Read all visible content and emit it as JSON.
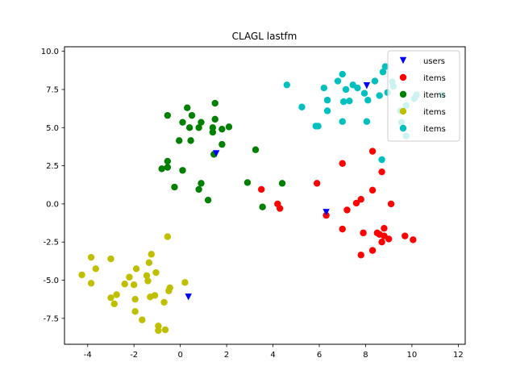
{
  "chart_data": {
    "type": "scatter",
    "title": "CLAGL lastfm",
    "xlabel": "",
    "ylabel": "",
    "xlim": [
      -5.0,
      12.3
    ],
    "ylim": [
      -9.2,
      10.3
    ],
    "xticks": [
      -4,
      -2,
      0,
      2,
      4,
      6,
      8,
      10,
      12
    ],
    "yticks": [
      -7.5,
      -5.0,
      -2.5,
      0.0,
      2.5,
      5.0,
      7.5,
      10.0
    ],
    "grid": false,
    "legend_position": "top-right",
    "series": [
      {
        "name": "users",
        "color": "#0000ff",
        "marker": "triangle-down",
        "points": [
          [
            0.35,
            -6.1
          ],
          [
            1.55,
            3.3
          ],
          [
            6.3,
            -0.55
          ],
          [
            8.05,
            7.75
          ]
        ]
      },
      {
        "name": "items",
        "color": "#ff0000",
        "marker": "circle",
        "points": [
          [
            3.5,
            0.95
          ],
          [
            4.2,
            0.0
          ],
          [
            4.3,
            -0.3
          ],
          [
            5.9,
            1.35
          ],
          [
            6.3,
            -0.75
          ],
          [
            7.0,
            2.65
          ],
          [
            7.2,
            -0.4
          ],
          [
            7.0,
            -1.65
          ],
          [
            7.6,
            0.05
          ],
          [
            7.8,
            0.3
          ],
          [
            7.9,
            -1.9
          ],
          [
            7.8,
            -3.35
          ],
          [
            8.3,
            0.9
          ],
          [
            8.3,
            3.45
          ],
          [
            8.7,
            2.1
          ],
          [
            8.5,
            -1.9
          ],
          [
            8.6,
            -2.0
          ],
          [
            8.8,
            -1.6
          ],
          [
            8.8,
            -2.1
          ],
          [
            9.0,
            -2.3
          ],
          [
            9.1,
            0.0
          ],
          [
            8.7,
            -2.5
          ],
          [
            8.3,
            -3.05
          ],
          [
            9.7,
            -2.1
          ],
          [
            10.05,
            -2.35
          ]
        ]
      },
      {
        "name": "items",
        "color": "#008000",
        "marker": "circle",
        "points": [
          [
            -0.55,
            5.8
          ],
          [
            0.1,
            5.35
          ],
          [
            0.3,
            6.3
          ],
          [
            0.5,
            5.8
          ],
          [
            0.4,
            5.0
          ],
          [
            0.8,
            5.0
          ],
          [
            0.9,
            5.35
          ],
          [
            1.4,
            5.0
          ],
          [
            1.4,
            4.7
          ],
          [
            1.5,
            5.55
          ],
          [
            1.5,
            6.6
          ],
          [
            1.8,
            4.9
          ],
          [
            2.1,
            5.05
          ],
          [
            -0.05,
            4.15
          ],
          [
            0.45,
            4.15
          ],
          [
            1.8,
            3.9
          ],
          [
            1.45,
            3.25
          ],
          [
            -0.55,
            2.8
          ],
          [
            -0.8,
            2.3
          ],
          [
            -0.55,
            2.4
          ],
          [
            0.1,
            2.2
          ],
          [
            0.9,
            1.35
          ],
          [
            0.8,
            0.95
          ],
          [
            -0.25,
            1.1
          ],
          [
            1.2,
            0.25
          ],
          [
            3.25,
            3.55
          ],
          [
            2.9,
            1.4
          ],
          [
            4.4,
            1.35
          ],
          [
            3.55,
            -0.2
          ]
        ]
      },
      {
        "name": "items",
        "color": "#bfbf00",
        "marker": "circle",
        "points": [
          [
            -4.25,
            -4.65
          ],
          [
            -3.85,
            -5.2
          ],
          [
            -3.85,
            -3.5
          ],
          [
            -3.65,
            -4.25
          ],
          [
            -3.0,
            -3.6
          ],
          [
            -3.0,
            -6.15
          ],
          [
            -2.85,
            -6.55
          ],
          [
            -2.75,
            -5.95
          ],
          [
            -2.4,
            -5.25
          ],
          [
            -2.2,
            -4.8
          ],
          [
            -2.0,
            -5.3
          ],
          [
            -1.95,
            -6.25
          ],
          [
            -1.95,
            -7.05
          ],
          [
            -1.9,
            -4.25
          ],
          [
            -1.65,
            -7.6
          ],
          [
            -1.45,
            -4.7
          ],
          [
            -1.4,
            -5.05
          ],
          [
            -1.35,
            -3.85
          ],
          [
            -1.3,
            -6.1
          ],
          [
            -1.25,
            -3.3
          ],
          [
            -1.05,
            -4.5
          ],
          [
            -1.1,
            -6.0
          ],
          [
            -0.95,
            -8.0
          ],
          [
            -0.95,
            -8.3
          ],
          [
            -0.7,
            -6.45
          ],
          [
            -0.65,
            -8.25
          ],
          [
            -0.5,
            -5.7
          ],
          [
            -0.45,
            -5.5
          ],
          [
            -0.55,
            -2.15
          ],
          [
            0.2,
            -5.15
          ]
        ]
      },
      {
        "name": "items",
        "color": "#00bfbf",
        "marker": "circle",
        "points": [
          [
            4.6,
            7.8
          ],
          [
            5.25,
            6.35
          ],
          [
            5.85,
            5.1
          ],
          [
            5.95,
            5.1
          ],
          [
            6.2,
            7.6
          ],
          [
            6.35,
            6.8
          ],
          [
            6.35,
            6.1
          ],
          [
            6.8,
            8.05
          ],
          [
            7.0,
            8.5
          ],
          [
            7.15,
            7.5
          ],
          [
            7.05,
            6.7
          ],
          [
            7.0,
            5.4
          ],
          [
            7.3,
            6.75
          ],
          [
            7.45,
            7.8
          ],
          [
            7.65,
            7.6
          ],
          [
            7.95,
            7.25
          ],
          [
            8.05,
            5.4
          ],
          [
            8.1,
            6.8
          ],
          [
            8.4,
            8.05
          ],
          [
            8.6,
            7.1
          ],
          [
            8.75,
            8.65
          ],
          [
            8.85,
            9.0
          ],
          [
            8.95,
            7.3
          ],
          [
            9.15,
            8.0
          ],
          [
            9.2,
            7.7
          ],
          [
            9.5,
            6.1
          ],
          [
            9.55,
            5.35
          ],
          [
            9.75,
            4.45
          ],
          [
            9.75,
            6.45
          ],
          [
            10.1,
            6.9
          ],
          [
            10.2,
            7.15
          ],
          [
            11.3,
            7.15
          ],
          [
            8.7,
            2.9
          ]
        ]
      }
    ]
  }
}
